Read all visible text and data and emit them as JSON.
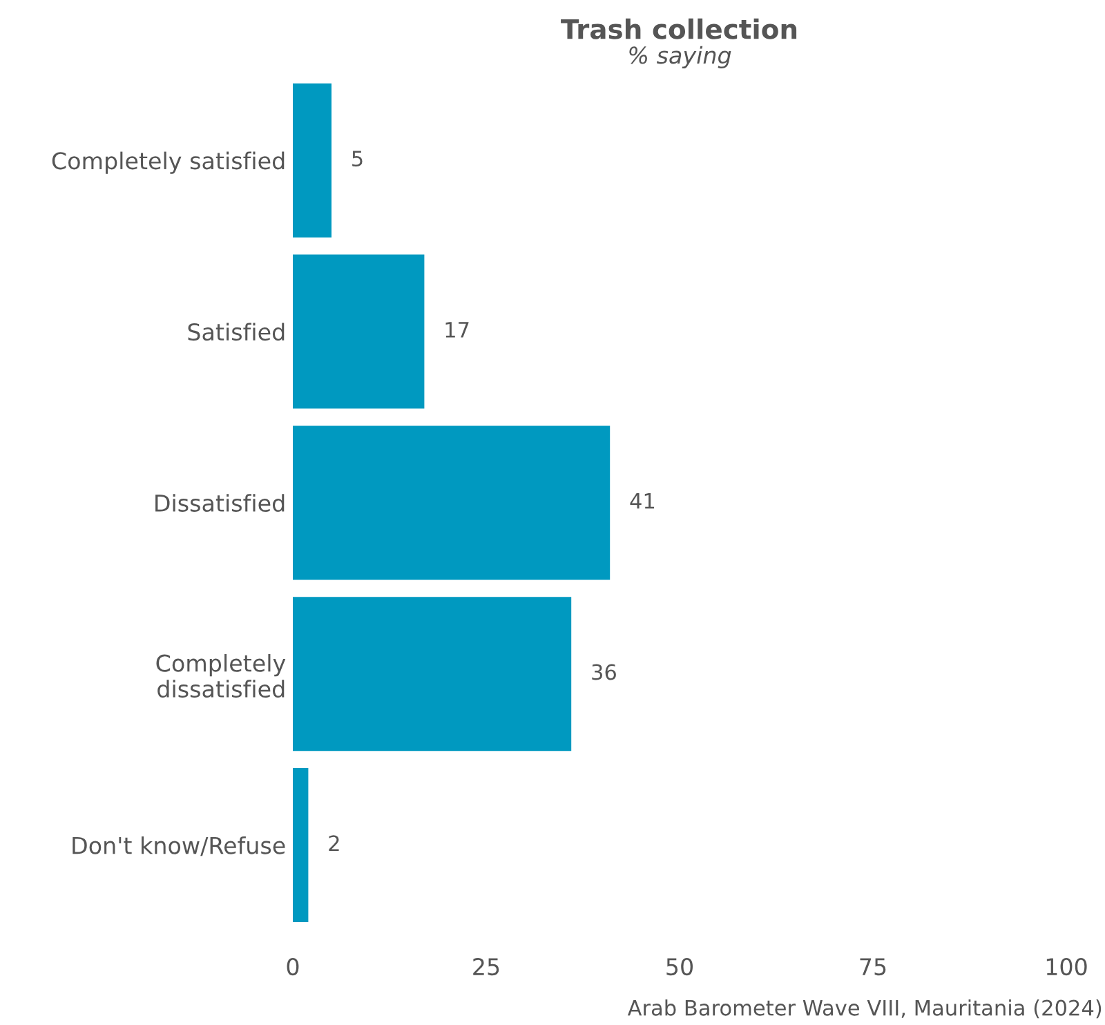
{
  "chart_data": {
    "type": "bar",
    "orientation": "horizontal",
    "title": "Trash collection",
    "subtitle": "% saying",
    "categories": [
      "Completely satisfied",
      "Satisfied",
      "Dissatisfied",
      "Completely\ndissatisfied",
      "Don't know/Refuse"
    ],
    "values": [
      5,
      17,
      41,
      36,
      2
    ],
    "color": "#0099c0",
    "xlim": [
      0,
      100
    ],
    "xticks": [
      0,
      25,
      50,
      75,
      100
    ],
    "grid": false,
    "data_labels": true,
    "annotations": [
      "Arab Barometer Wave VIII, Mauritania (2024)"
    ]
  }
}
